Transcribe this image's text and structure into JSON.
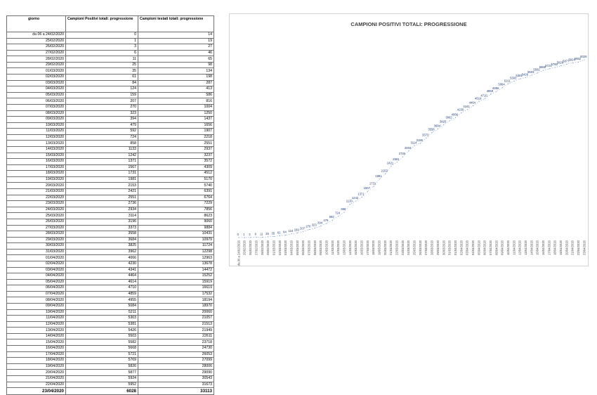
{
  "table": {
    "headers": [
      "giorno",
      "Campioni Positivi totali: progressione",
      "Campioni testati totali: progressione"
    ],
    "rows": [
      [
        "da 06 a 24/02/2020",
        "0",
        "14"
      ],
      [
        "25/02/2020",
        "1",
        "19"
      ],
      [
        "26/02/2020",
        "3",
        "27"
      ],
      [
        "27/02/2020",
        "6",
        "46"
      ],
      [
        "28/02/2020",
        "11",
        "65"
      ],
      [
        "29/02/2020",
        "25",
        "98"
      ],
      [
        "01/03/2020",
        "35",
        "134"
      ],
      [
        "02/03/2020",
        "61",
        "198"
      ],
      [
        "03/03/2020",
        "84",
        "287"
      ],
      [
        "04/03/2020",
        "124",
        "413"
      ],
      [
        "05/03/2020",
        "159",
        "586"
      ],
      [
        "06/03/2020",
        "207",
        "816"
      ],
      [
        "07/03/2020",
        "270",
        "1004"
      ],
      [
        "08/03/2020",
        "323",
        "1250"
      ],
      [
        "09/03/2020",
        "394",
        "1437"
      ],
      [
        "10/03/2020",
        "479",
        "1656"
      ],
      [
        "11/03/2020",
        "592",
        "1907"
      ],
      [
        "12/03/2020",
        "724",
        "2218"
      ],
      [
        "13/03/2020",
        "858",
        "2551"
      ],
      [
        "14/03/2020",
        "1133",
        "2937"
      ],
      [
        "15/03/2020",
        "1242",
        "3237"
      ],
      [
        "16/03/2020",
        "1371",
        "3572"
      ],
      [
        "17/03/2020",
        "1567",
        "4309"
      ],
      [
        "18/03/2020",
        "1731",
        "4512"
      ],
      [
        "19/03/2020",
        "1981",
        "5170"
      ],
      [
        "20/03/2020",
        "2153",
        "5740"
      ],
      [
        "21/03/2020",
        "2421",
        "6391"
      ],
      [
        "22/03/2020",
        "2551",
        "6764"
      ],
      [
        "23/03/2020",
        "2736",
        "7229"
      ],
      [
        "24/03/2020",
        "2934",
        "7856"
      ],
      [
        "25/03/2020",
        "3114",
        "8623"
      ],
      [
        "26/03/2020",
        "3196",
        "9060"
      ],
      [
        "27/03/2020",
        "3373",
        "9884"
      ],
      [
        "28/03/2020",
        "3558",
        "10431"
      ],
      [
        "29/03/2020",
        "3684",
        "10979"
      ],
      [
        "30/03/2020",
        "3825",
        "11724"
      ],
      [
        "31/03/2020",
        "3962",
        "12298"
      ],
      [
        "01/04/2020",
        "4066",
        "12963"
      ],
      [
        "02/04/2020",
        "4230",
        "13678"
      ],
      [
        "03/04/2020",
        "4341",
        "14472"
      ],
      [
        "04/04/2020",
        "4464",
        "15252"
      ],
      [
        "05/04/2020",
        "4614",
        "15919"
      ],
      [
        "06/04/2020",
        "4710",
        "16619"
      ],
      [
        "07/04/2020",
        "4859",
        "17532"
      ],
      [
        "08/04/2020",
        "4955",
        "18194"
      ],
      [
        "09/04/2020",
        "5084",
        "18970"
      ],
      [
        "10/04/2020",
        "5211",
        "20060"
      ],
      [
        "11/04/2020",
        "5303",
        "21057"
      ],
      [
        "12/04/2020",
        "5381",
        "21513"
      ],
      [
        "13/04/2020",
        "5426",
        "21949"
      ],
      [
        "14/04/2020",
        "5503",
        "22611"
      ],
      [
        "15/04/2020",
        "5582",
        "23718"
      ],
      [
        "16/04/2020",
        "5668",
        "24730"
      ],
      [
        "17/04/2020",
        "5721",
        "26053"
      ],
      [
        "18/04/2020",
        "5769",
        "27099"
      ],
      [
        "19/04/2020",
        "5826",
        "28006"
      ],
      [
        "20/04/2020",
        "5877",
        "29090"
      ],
      [
        "21/04/2020",
        "5924",
        "30543"
      ],
      [
        "22/04/2020",
        "5952",
        "31673"
      ]
    ],
    "total_row": [
      "23/04/2020",
      "6028",
      "33113"
    ]
  },
  "chart_data": {
    "type": "line",
    "title": "CAMPIONI POSITIVI TOTALI: PROGRESSIONE",
    "xlabel": "",
    "ylabel": "",
    "ylim": [
      0,
      6028
    ],
    "grid": false,
    "legend": "none",
    "categories": [
      "da 06 a 24/02/2020",
      "25/02/2020",
      "26/02/2020",
      "27/02/2020",
      "28/02/2020",
      "29/02/2020",
      "01/03/2020",
      "02/03/2020",
      "03/03/2020",
      "04/03/2020",
      "05/03/2020",
      "06/03/2020",
      "07/03/2020",
      "08/03/2020",
      "09/03/2020",
      "10/03/2020",
      "11/03/2020",
      "12/03/2020",
      "13/03/2020",
      "14/03/2020",
      "15/03/2020",
      "16/03/2020",
      "17/03/2020",
      "18/03/2020",
      "19/03/2020",
      "20/03/2020",
      "21/03/2020",
      "22/03/2020",
      "23/03/2020",
      "24/03/2020",
      "25/03/2020",
      "26/03/2020",
      "27/03/2020",
      "28/03/2020",
      "29/03/2020",
      "30/03/2020",
      "31/03/2020",
      "01/04/2020",
      "02/04/2020",
      "03/04/2020",
      "04/04/2020",
      "05/04/2020",
      "06/04/2020",
      "07/04/2020",
      "08/04/2020",
      "09/04/2020",
      "10/04/2020",
      "11/04/2020",
      "12/04/2020",
      "13/04/2020",
      "14/04/2020",
      "15/04/2020",
      "16/04/2020",
      "17/04/2020",
      "18/04/2020",
      "19/04/2020",
      "20/04/2020",
      "21/04/2020",
      "22/04/2020",
      "23/04/2020"
    ],
    "series": [
      {
        "values": [
          0,
          1,
          3,
          6,
          11,
          25,
          35,
          61,
          84,
          124,
          159,
          207,
          270,
          323,
          394,
          479,
          592,
          724,
          858,
          1133,
          1242,
          1371,
          1567,
          1731,
          1981,
          2153,
          2421,
          2551,
          2736,
          2934,
          3114,
          3196,
          3373,
          3558,
          3684,
          3825,
          3962,
          4066,
          4230,
          4341,
          4464,
          4614,
          4710,
          4859,
          4955,
          5084,
          5211,
          5303,
          5381,
          5426,
          5503,
          5582,
          5668,
          5721,
          5769,
          5826,
          5877,
          5924,
          5952,
          6028
        ],
        "color": "#4472c4"
      }
    ]
  }
}
